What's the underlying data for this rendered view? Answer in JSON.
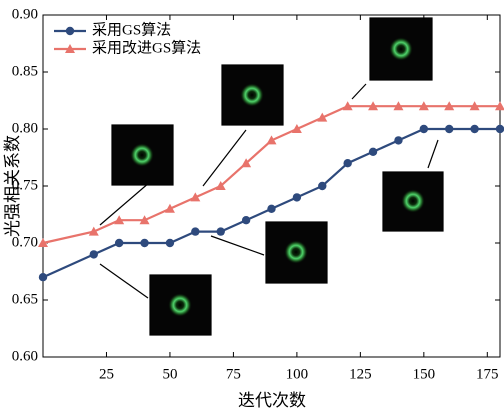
{
  "chart_data": {
    "type": "line",
    "x_label": "迭代次数",
    "y_label": "光强相关系数",
    "x": [
      0,
      20,
      30,
      40,
      50,
      60,
      70,
      80,
      90,
      100,
      110,
      120,
      130,
      140,
      150,
      160,
      170,
      180
    ],
    "series": [
      {
        "name": "采用GS算法",
        "color": "#2e4a7d",
        "marker": "circle",
        "values": [
          0.67,
          0.69,
          0.7,
          0.7,
          0.7,
          0.71,
          0.71,
          0.72,
          0.73,
          0.74,
          0.75,
          0.77,
          0.78,
          0.79,
          0.8,
          0.8,
          0.8,
          0.8
        ]
      },
      {
        "name": "采用改进GS算法",
        "color": "#e8736b",
        "marker": "triangle",
        "values": [
          0.7,
          0.71,
          0.72,
          0.72,
          0.73,
          0.74,
          0.75,
          0.77,
          0.79,
          0.8,
          0.81,
          0.82,
          0.82,
          0.82,
          0.82,
          0.82,
          0.82,
          0.82
        ]
      }
    ],
    "xlim": [
      0,
      180
    ],
    "xticks": [
      25,
      50,
      75,
      100,
      125,
      150,
      175
    ],
    "ylim": [
      0.6,
      0.9
    ],
    "yticks": [
      {
        "value": 0.6,
        "label": "0.60"
      },
      {
        "value": 0.65,
        "label": "0.65"
      },
      {
        "value": 0.7,
        "label": "0.70"
      },
      {
        "value": 0.75,
        "label": "0.75"
      },
      {
        "value": 0.8,
        "label": "0.80"
      },
      {
        "value": 0.85,
        "label": "0.85"
      },
      {
        "value": 0.9,
        "label": "0.90"
      }
    ],
    "legend": "upper left",
    "grid": false
  }
}
